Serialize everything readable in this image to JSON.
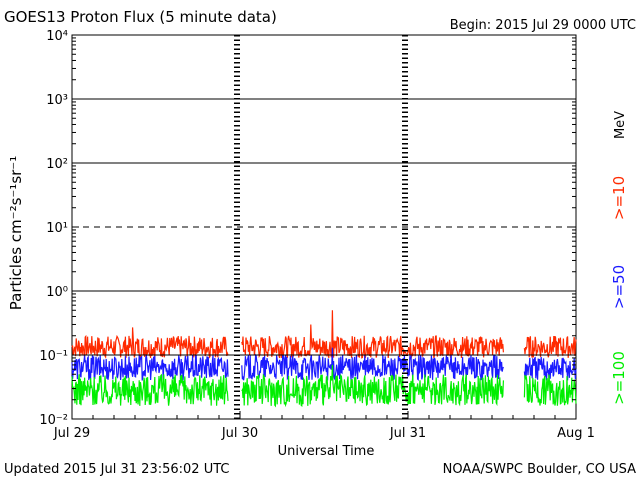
{
  "chart_data": {
    "type": "line",
    "title": "GOES13 Proton Flux (5 minute data)",
    "begin_label": "Begin: 2015 Jul 29 0000 UTC",
    "xlabel": "Universal Time",
    "ylabel": "Particles cm⁻²s⁻¹sr⁻¹",
    "y_scale": "log",
    "ylim": [
      0.01,
      10000
    ],
    "y_ticks": [
      {
        "value": 10000,
        "label": "10⁴"
      },
      {
        "value": 1000,
        "label": "10³"
      },
      {
        "value": 100,
        "label": "10²"
      },
      {
        "value": 10,
        "label": "10¹"
      },
      {
        "value": 1,
        "label": "10⁰"
      },
      {
        "value": 0.1,
        "label": "10⁻¹"
      },
      {
        "value": 0.01,
        "label": "10⁻²"
      }
    ],
    "x_range_days": [
      0,
      3
    ],
    "x_ticks": [
      {
        "day": 0,
        "label": "Jul 29"
      },
      {
        "day": 1,
        "label": "Jul 30"
      },
      {
        "day": 2,
        "label": "Jul 31"
      },
      {
        "day": 3,
        "label": "Aug 1"
      }
    ],
    "threshold_lines": [
      {
        "value": 1000,
        "style": "solid"
      },
      {
        "value": 100,
        "style": "solid"
      },
      {
        "value": 10,
        "style": "dashed"
      },
      {
        "value": 1,
        "style": "solid"
      },
      {
        "value": 0.1,
        "style": "solid"
      }
    ],
    "data_gaps_days": [
      [
        0.93,
        1.01
      ],
      [
        2.57,
        2.69
      ]
    ],
    "series": [
      {
        "name": ">=10",
        "color": "#ff2a00",
        "low": 0.09,
        "high": 0.2,
        "spikes": [
          [
            1.55,
            0.5
          ],
          [
            1.42,
            0.3
          ],
          [
            0.36,
            0.27
          ]
        ]
      },
      {
        "name": ">=50",
        "color": "#1a1aff",
        "low": 0.04,
        "high": 0.1,
        "spikes": [
          [
            1.55,
            0.13
          ]
        ]
      },
      {
        "name": ">=100",
        "color": "#00ee00",
        "low": 0.016,
        "high": 0.05,
        "spikes": [
          [
            1.55,
            0.07
          ]
        ]
      }
    ],
    "units_label": "MeV",
    "grid": false,
    "legend_placement": "right-vertical"
  },
  "footer": {
    "updated": "Updated 2015 Jul 31 23:56:02 UTC",
    "source": "NOAA/SWPC Boulder, CO USA"
  }
}
